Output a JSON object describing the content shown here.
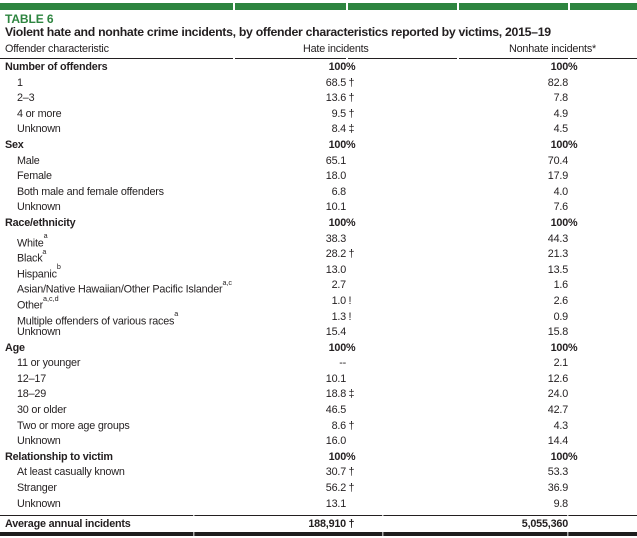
{
  "colors": {
    "accent_green": "#2e8540",
    "text": "#231f20"
  },
  "table": {
    "tag": "TABLE 6",
    "title": "Violent hate and nonhate crime incidents, by offender characteristics reported by victims, 2015–19",
    "columns": [
      "Offender characteristic",
      "Hate incidents",
      "Nonhate incidents*"
    ],
    "rows": [
      {
        "label": "Number of offenders",
        "bold": true,
        "indent": 0,
        "hate": "100",
        "hate_flag": "%",
        "nonhate": "100",
        "nonhate_flag": "%"
      },
      {
        "label": "1",
        "bold": false,
        "indent": 1,
        "hate": "68.5",
        "hate_flag": "†",
        "nonhate": "82.8",
        "nonhate_flag": ""
      },
      {
        "label": "2–3",
        "bold": false,
        "indent": 1,
        "hate": "13.6",
        "hate_flag": "†",
        "nonhate": "7.8",
        "nonhate_flag": ""
      },
      {
        "label": "4 or more",
        "bold": false,
        "indent": 1,
        "hate": "9.5",
        "hate_flag": "†",
        "nonhate": "4.9",
        "nonhate_flag": ""
      },
      {
        "label": "Unknown",
        "bold": false,
        "indent": 1,
        "hate": "8.4",
        "hate_flag": "‡",
        "nonhate": "4.5",
        "nonhate_flag": ""
      },
      {
        "label": "Sex",
        "bold": true,
        "indent": 0,
        "hate": "100",
        "hate_flag": "%",
        "nonhate": "100",
        "nonhate_flag": "%"
      },
      {
        "label": "Male",
        "bold": false,
        "indent": 1,
        "hate": "65.1",
        "hate_flag": "",
        "nonhate": "70.4",
        "nonhate_flag": ""
      },
      {
        "label": "Female",
        "bold": false,
        "indent": 1,
        "hate": "18.0",
        "hate_flag": "",
        "nonhate": "17.9",
        "nonhate_flag": ""
      },
      {
        "label": "Both male and female offenders",
        "bold": false,
        "indent": 1,
        "hate": "6.8",
        "hate_flag": "",
        "nonhate": "4.0",
        "nonhate_flag": ""
      },
      {
        "label": "Unknown",
        "bold": false,
        "indent": 1,
        "hate": "10.1",
        "hate_flag": "",
        "nonhate": "7.6",
        "nonhate_flag": ""
      },
      {
        "label": "Race/ethnicity",
        "bold": true,
        "indent": 0,
        "hate": "100",
        "hate_flag": "%",
        "nonhate": "100",
        "nonhate_flag": "%"
      },
      {
        "label": "White",
        "sup": "a",
        "bold": false,
        "indent": 1,
        "hate": "38.3",
        "hate_flag": "",
        "nonhate": "44.3",
        "nonhate_flag": ""
      },
      {
        "label": "Black",
        "sup": "a",
        "bold": false,
        "indent": 1,
        "hate": "28.2",
        "hate_flag": "†",
        "nonhate": "21.3",
        "nonhate_flag": ""
      },
      {
        "label": "Hispanic",
        "sup": "b",
        "bold": false,
        "indent": 1,
        "hate": "13.0",
        "hate_flag": "",
        "nonhate": "13.5",
        "nonhate_flag": ""
      },
      {
        "label": "Asian/Native Hawaiian/Other Pacific Islander",
        "sup": "a,c",
        "bold": false,
        "indent": 1,
        "hate": "2.7",
        "hate_flag": "",
        "nonhate": "1.6",
        "nonhate_flag": ""
      },
      {
        "label": "Other",
        "sup": "a,c,d",
        "bold": false,
        "indent": 1,
        "hate": "1.0",
        "hate_flag": "!",
        "nonhate": "2.6",
        "nonhate_flag": ""
      },
      {
        "label": "Multiple offenders of various races",
        "sup": "a",
        "bold": false,
        "indent": 1,
        "hate": "1.3",
        "hate_flag": "!",
        "nonhate": "0.9",
        "nonhate_flag": ""
      },
      {
        "label": "Unknown",
        "bold": false,
        "indent": 1,
        "hate": "15.4",
        "hate_flag": "",
        "nonhate": "15.8",
        "nonhate_flag": ""
      },
      {
        "label": "Age",
        "bold": true,
        "indent": 0,
        "hate": "100",
        "hate_flag": "%",
        "nonhate": "100",
        "nonhate_flag": "%"
      },
      {
        "label": "11 or younger",
        "bold": false,
        "indent": 1,
        "hate": "--",
        "hate_flag": "",
        "nonhate": "2.1",
        "nonhate_flag": ""
      },
      {
        "label": "12–17",
        "bold": false,
        "indent": 1,
        "hate": "10.1",
        "hate_flag": "",
        "nonhate": "12.6",
        "nonhate_flag": ""
      },
      {
        "label": "18–29",
        "bold": false,
        "indent": 1,
        "hate": "18.8",
        "hate_flag": "‡",
        "nonhate": "24.0",
        "nonhate_flag": ""
      },
      {
        "label": "30 or older",
        "bold": false,
        "indent": 1,
        "hate": "46.5",
        "hate_flag": "",
        "nonhate": "42.7",
        "nonhate_flag": ""
      },
      {
        "label": "Two or more age groups",
        "bold": false,
        "indent": 1,
        "hate": "8.6",
        "hate_flag": "†",
        "nonhate": "4.3",
        "nonhate_flag": ""
      },
      {
        "label": "Unknown",
        "bold": false,
        "indent": 1,
        "hate": "16.0",
        "hate_flag": "",
        "nonhate": "14.4",
        "nonhate_flag": ""
      },
      {
        "label": "Relationship to victim",
        "bold": true,
        "indent": 0,
        "hate": "100",
        "hate_flag": "%",
        "nonhate": "100",
        "nonhate_flag": "%"
      },
      {
        "label": "At least casually known",
        "bold": false,
        "indent": 1,
        "hate": "30.7",
        "hate_flag": "†",
        "nonhate": "53.3",
        "nonhate_flag": ""
      },
      {
        "label": "Stranger",
        "bold": false,
        "indent": 1,
        "hate": "56.2",
        "hate_flag": "†",
        "nonhate": "36.9",
        "nonhate_flag": ""
      },
      {
        "label": "Unknown",
        "bold": false,
        "indent": 1,
        "hate": "13.1",
        "hate_flag": "",
        "nonhate": "9.8",
        "nonhate_flag": ""
      }
    ],
    "total": {
      "label": "Average annual incidents",
      "hate": "188,910",
      "hate_flag": "†",
      "nonhate": "5,055,360",
      "nonhate_flag": ""
    }
  }
}
